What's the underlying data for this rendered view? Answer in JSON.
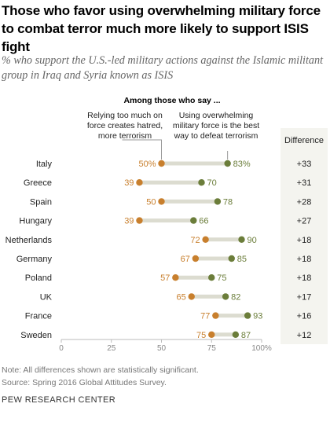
{
  "title": "Those who favor using overwhelming military force to combat terror much more likely to support ISIS fight",
  "subtitle": "% who support the U.S.-led military actions against the Islamic militant group in Iraq and Syria known as ISIS",
  "note": "Note: All differences shown are statistically significant.",
  "source": "Source: Spring 2016 Global Attitudes Survey.",
  "footer": "PEW RESEARCH CENTER",
  "chart_data": {
    "type": "dot",
    "group_header": "Among those who say ...",
    "series": [
      {
        "name": "Relying too much on force creates hatred, more terrorism",
        "color": "#c87f2d",
        "values": [
          50,
          39,
          50,
          39,
          72,
          67,
          57,
          65,
          77,
          75
        ]
      },
      {
        "name": "Using overwhelming military force is the best way to defeat terrorism",
        "color": "#6b7d3a",
        "values": [
          83,
          70,
          78,
          66,
          90,
          85,
          75,
          82,
          93,
          87
        ]
      }
    ],
    "categories": [
      "Italy",
      "Greece",
      "Spain",
      "Hungary",
      "Netherlands",
      "Germany",
      "Poland",
      "UK",
      "France",
      "Sweden"
    ],
    "difference_header": "Difference",
    "differences": [
      "+33",
      "+31",
      "+28",
      "+27",
      "+18",
      "+18",
      "+18",
      "+17",
      "+16",
      "+12"
    ],
    "xlim": [
      0,
      100
    ],
    "x_ticks": [
      "0",
      "25",
      "50",
      "75",
      "100%"
    ],
    "first_row_value_suffix": "%",
    "connector_color": "#dcdcd0"
  }
}
